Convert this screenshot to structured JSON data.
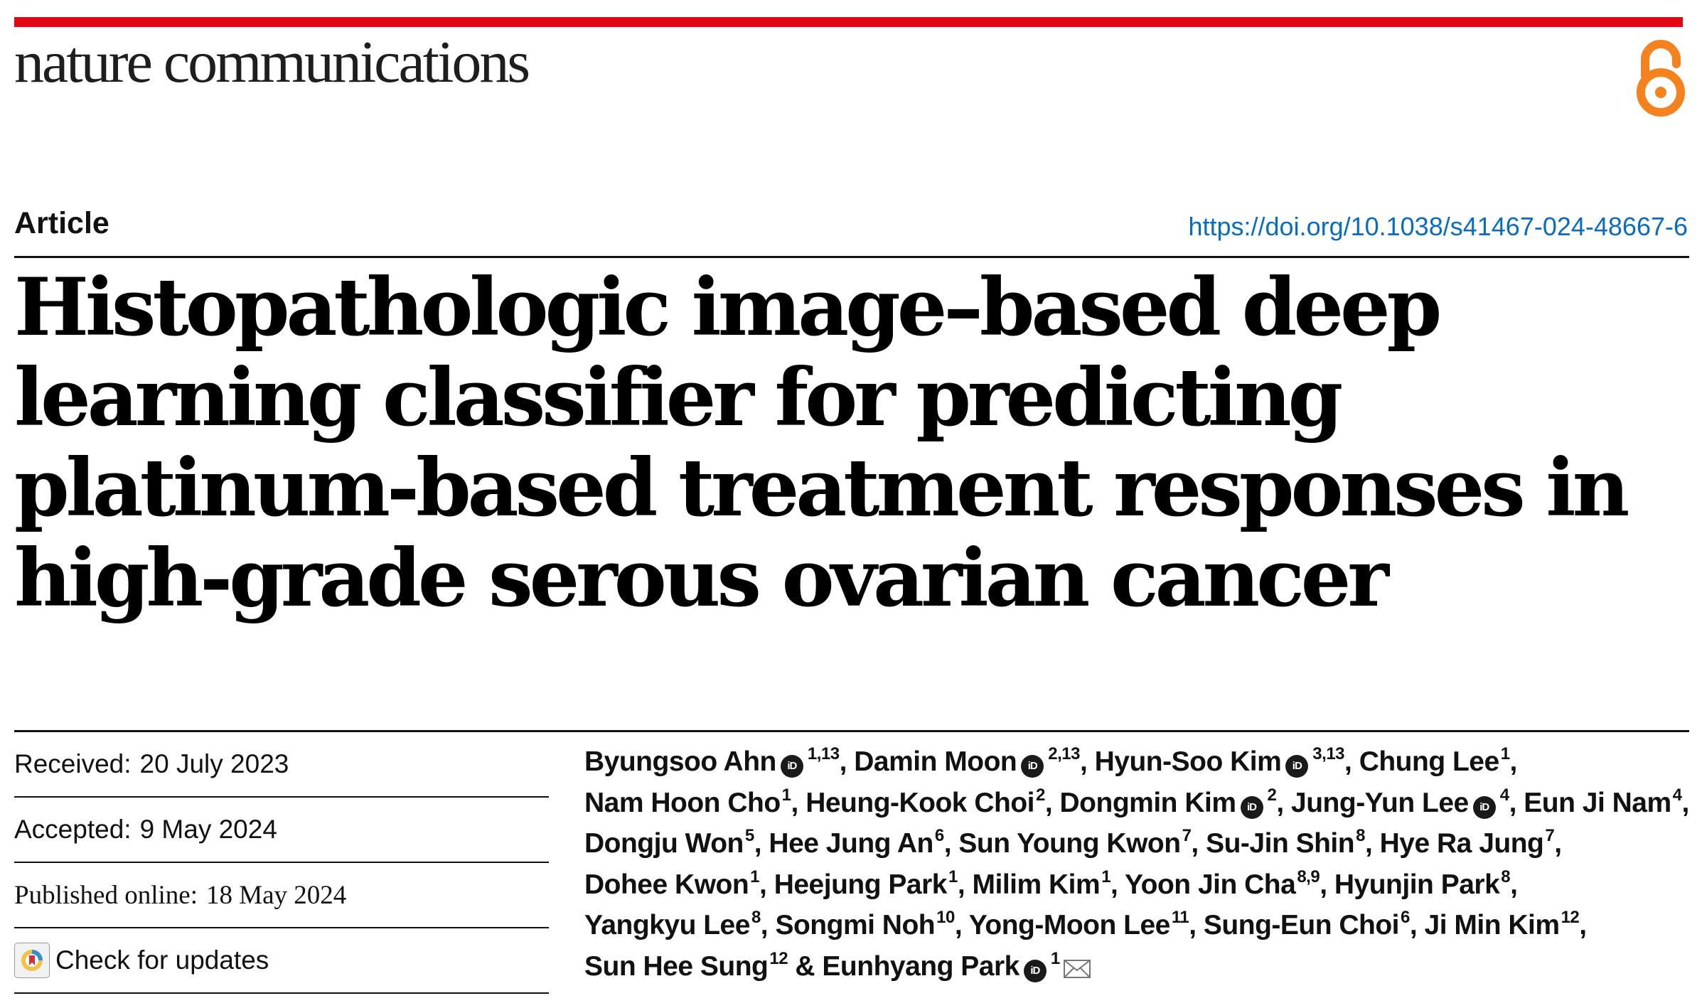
{
  "journal": {
    "name": "nature communications",
    "brand_color": "#e30613",
    "open_access_icon": "open-access-lock-icon",
    "open_access_color": "#f6821f"
  },
  "article": {
    "type": "Article",
    "doi": "https://doi.org/10.1038/s41467-024-48667-6",
    "title": "Histopathologic image–based deep learning classifier for predicting platinum-based treatment responses in high-grade serous ovarian cancer"
  },
  "dates": {
    "received_label": "Received:",
    "received": "20 July 2023",
    "accepted_label": "Accepted:",
    "accepted": "9 May 2024",
    "published_label": "Published online:",
    "published": "18 May 2024"
  },
  "check_updates": {
    "label": "Check for updates"
  },
  "authors": [
    {
      "name": "Byungsoo Ahn",
      "orcid": true,
      "aff": "1,13",
      "sep": ", "
    },
    {
      "name": "Damin Moon",
      "orcid": true,
      "aff": "2,13",
      "sep": ", "
    },
    {
      "name": "Hyun-Soo Kim",
      "orcid": true,
      "aff": "3,13",
      "sep": ", "
    },
    {
      "name": "Chung Lee",
      "orcid": false,
      "aff": "1",
      "sep": ", "
    },
    {
      "name": "Nam Hoon Cho",
      "orcid": false,
      "aff": "1",
      "sep": ", "
    },
    {
      "name": "Heung-Kook Choi",
      "orcid": false,
      "aff": "2",
      "sep": ", "
    },
    {
      "name": "Dongmin Kim",
      "orcid": true,
      "aff": "2",
      "sep": ", "
    },
    {
      "name": "Jung-Yun Lee",
      "orcid": true,
      "aff": "4",
      "sep": ", "
    },
    {
      "name": "Eun Ji Nam",
      "orcid": false,
      "aff": "4",
      "sep": ", "
    },
    {
      "name": "Dongju Won",
      "orcid": false,
      "aff": "5",
      "sep": ", "
    },
    {
      "name": "Hee Jung An",
      "orcid": false,
      "aff": "6",
      "sep": ", "
    },
    {
      "name": "Sun Young Kwon",
      "orcid": false,
      "aff": "7",
      "sep": ", "
    },
    {
      "name": "Su-Jin Shin",
      "orcid": false,
      "aff": "8",
      "sep": ", "
    },
    {
      "name": "Hye Ra Jung",
      "orcid": false,
      "aff": "7",
      "sep": ", "
    },
    {
      "name": "Dohee Kwon",
      "orcid": false,
      "aff": "1",
      "sep": ", "
    },
    {
      "name": "Heejung Park",
      "orcid": false,
      "aff": "1",
      "sep": ", "
    },
    {
      "name": "Milim Kim",
      "orcid": false,
      "aff": "1",
      "sep": ", "
    },
    {
      "name": "Yoon Jin Cha",
      "orcid": false,
      "aff": "8,9",
      "sep": ", "
    },
    {
      "name": "Hyunjin Park",
      "orcid": false,
      "aff": "8",
      "sep": ", "
    },
    {
      "name": "Yangkyu Lee",
      "orcid": false,
      "aff": "8",
      "sep": ", "
    },
    {
      "name": "Songmi Noh",
      "orcid": false,
      "aff": "10",
      "sep": ", "
    },
    {
      "name": "Yong-Moon Lee",
      "orcid": false,
      "aff": "11",
      "sep": ", "
    },
    {
      "name": "Sung-Eun Choi",
      "orcid": false,
      "aff": "6",
      "sep": ", "
    },
    {
      "name": "Ji Min Kim",
      "orcid": false,
      "aff": "12",
      "sep": ", "
    },
    {
      "name": "Sun Hee Sung",
      "orcid": false,
      "aff": "12",
      "sep": " & "
    },
    {
      "name": "Eunhyang Park",
      "orcid": true,
      "aff": "1",
      "sep": "",
      "corresponding": true
    }
  ],
  "orcid_badge": "iD",
  "icons": {
    "orcid": "orcid-icon",
    "corresponding": "envelope-icon",
    "check_updates": "check-for-updates-icon"
  }
}
